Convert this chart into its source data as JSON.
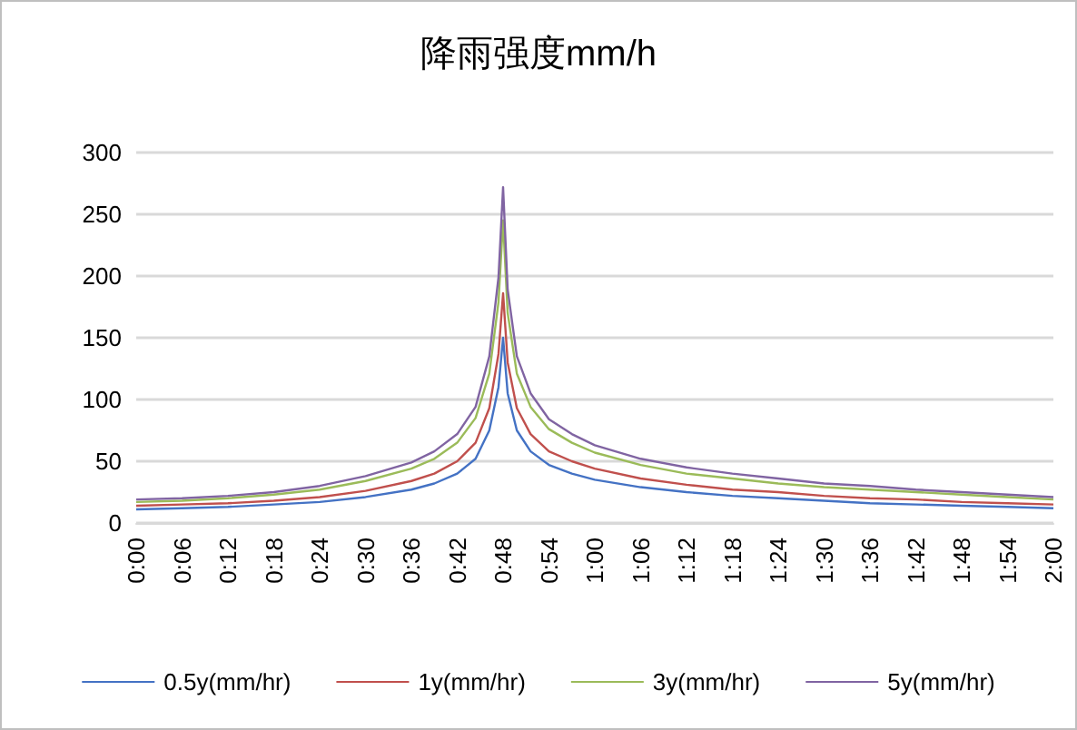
{
  "chart_data": {
    "type": "line",
    "title": "降雨强度mm/h",
    "x": [
      0,
      0.1,
      0.2,
      0.3,
      0.4,
      0.5,
      0.6,
      0.65,
      0.7,
      0.74,
      0.77,
      0.79,
      0.8,
      0.81,
      0.83,
      0.86,
      0.9,
      0.95,
      1.0,
      1.1,
      1.2,
      1.3,
      1.4,
      1.5,
      1.6,
      1.7,
      1.8,
      1.9,
      2.0
    ],
    "series": [
      {
        "name": "0.5y(mm/hr)",
        "color": "#4472c4",
        "values": [
          11,
          12,
          13,
          15,
          17,
          21,
          27,
          32,
          40,
          52,
          75,
          110,
          150,
          105,
          75,
          58,
          47,
          40,
          35,
          29,
          25,
          22,
          20,
          18,
          16,
          15,
          14,
          13,
          12
        ]
      },
      {
        "name": "1y(mm/hr)",
        "color": "#c0504d",
        "values": [
          14,
          15,
          16,
          18,
          21,
          26,
          34,
          40,
          50,
          65,
          93,
          137,
          186,
          130,
          93,
          72,
          58,
          50,
          44,
          36,
          31,
          27,
          25,
          22,
          20,
          19,
          17,
          16,
          15
        ]
      },
      {
        "name": "3y(mm/hr)",
        "color": "#9bbb59",
        "values": [
          17,
          18,
          20,
          23,
          27,
          34,
          44,
          52,
          65,
          85,
          121,
          179,
          245,
          170,
          121,
          94,
          76,
          65,
          57,
          47,
          40,
          36,
          32,
          29,
          27,
          25,
          23,
          21,
          19
        ]
      },
      {
        "name": "5y(mm/hr)",
        "color": "#8064a2",
        "values": [
          19,
          20,
          22,
          25,
          30,
          38,
          49,
          58,
          72,
          94,
          135,
          199,
          272,
          189,
          135,
          105,
          84,
          72,
          63,
          52,
          45,
          40,
          36,
          32,
          30,
          27,
          25,
          23,
          21
        ]
      }
    ],
    "xlim": [
      0,
      2
    ],
    "xticks": [
      {
        "value": 0,
        "label": "0:00"
      },
      {
        "value": 0.1,
        "label": "0:06"
      },
      {
        "value": 0.2,
        "label": "0:12"
      },
      {
        "value": 0.3,
        "label": "0:18"
      },
      {
        "value": 0.4,
        "label": "0:24"
      },
      {
        "value": 0.5,
        "label": "0:30"
      },
      {
        "value": 0.6,
        "label": "0:36"
      },
      {
        "value": 0.7,
        "label": "0:42"
      },
      {
        "value": 0.8,
        "label": "0:48"
      },
      {
        "value": 0.9,
        "label": "0:54"
      },
      {
        "value": 1.0,
        "label": "1:00"
      },
      {
        "value": 1.1,
        "label": "1:06"
      },
      {
        "value": 1.2,
        "label": "1:12"
      },
      {
        "value": 1.3,
        "label": "1:18"
      },
      {
        "value": 1.4,
        "label": "1:24"
      },
      {
        "value": 1.5,
        "label": "1:30"
      },
      {
        "value": 1.6,
        "label": "1:36"
      },
      {
        "value": 1.7,
        "label": "1:42"
      },
      {
        "value": 1.8,
        "label": "1:48"
      },
      {
        "value": 1.9,
        "label": "1:54"
      },
      {
        "value": 2.0,
        "label": "2:00"
      }
    ],
    "ylim": [
      0,
      300
    ],
    "yticks": [
      0,
      50,
      100,
      150,
      200,
      250,
      300
    ],
    "grid": "y",
    "legend": "bottom",
    "marker": "none",
    "line_style": "solid"
  }
}
